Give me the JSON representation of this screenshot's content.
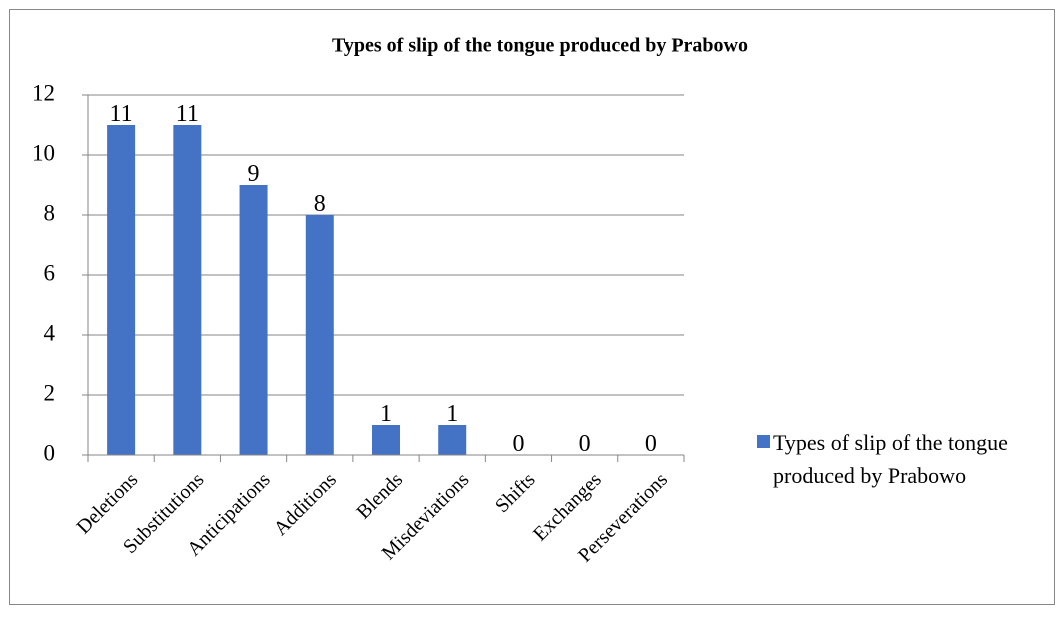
{
  "chart_data": {
    "type": "bar",
    "title": "Types of slip of the tongue produced by Prabowo",
    "categories": [
      "Deletions",
      "Substitutions",
      "Anticipations",
      "Additions",
      "Blends",
      "Misdeviations",
      "Shifts",
      "Exchanges",
      "Perseverations"
    ],
    "series": [
      {
        "name": "Types of slip of the tongue produced by Prabowo",
        "color": "#4472c4",
        "values": [
          11,
          11,
          9,
          8,
          1,
          1,
          0,
          0,
          0
        ]
      }
    ],
    "ylim": [
      0,
      12
    ],
    "yticks": [
      0,
      2,
      4,
      6,
      8,
      10,
      12
    ],
    "grid": true,
    "legend": "right"
  }
}
